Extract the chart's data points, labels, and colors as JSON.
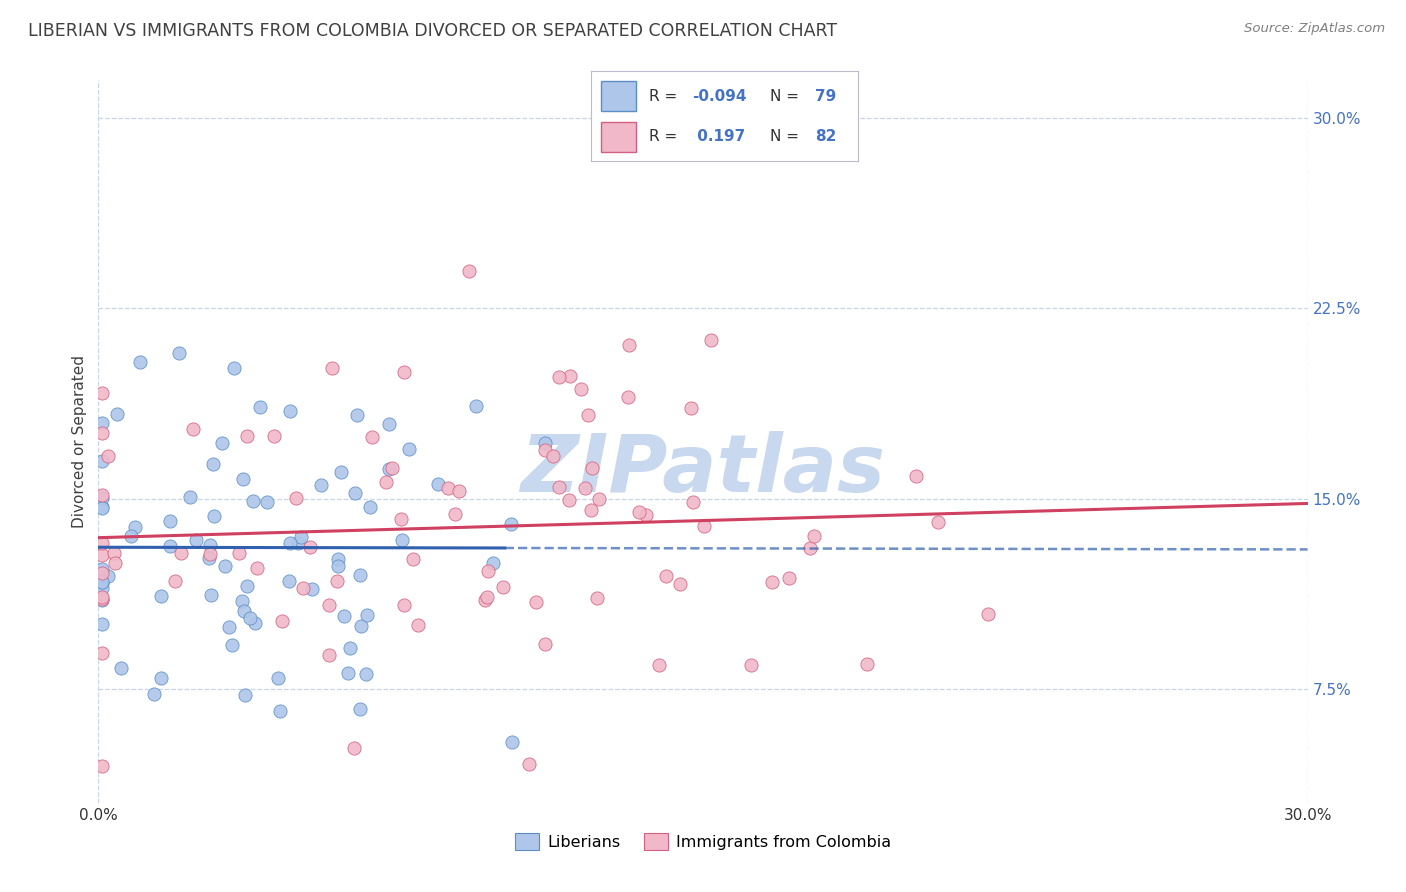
{
  "title": "LIBERIAN VS IMMIGRANTS FROM COLOMBIA DIVORCED OR SEPARATED CORRELATION CHART",
  "source_text": "Source: ZipAtlas.com",
  "ylabel": "Divorced or Separated",
  "xmin": 0.0,
  "xmax": 0.3,
  "ymin": 0.03,
  "ymax": 0.315,
  "yticks": [
    0.075,
    0.15,
    0.225,
    0.3
  ],
  "ytick_labels": [
    "7.5%",
    "15.0%",
    "22.5%",
    "30.0%"
  ],
  "xtick_labels": [
    "0.0%",
    "30.0%"
  ],
  "legend_labels": [
    "Liberians",
    "Immigrants from Colombia"
  ],
  "legend_R": [
    "-0.094",
    "0.197"
  ],
  "legend_N": [
    "79",
    "82"
  ],
  "blue_fill": "#aec6ea",
  "blue_edge": "#5b8ec4",
  "pink_fill": "#f0b8c8",
  "pink_edge": "#d46080",
  "blue_line_color": "#3060b0",
  "pink_line_color": "#d04060",
  "watermark_color": "#c8d8ee",
  "background_color": "#ffffff",
  "grid_color": "#c8d4e8",
  "title_color": "#404040",
  "source_color": "#808080",
  "tick_color": "#4472c4",
  "label_color": "#404040"
}
